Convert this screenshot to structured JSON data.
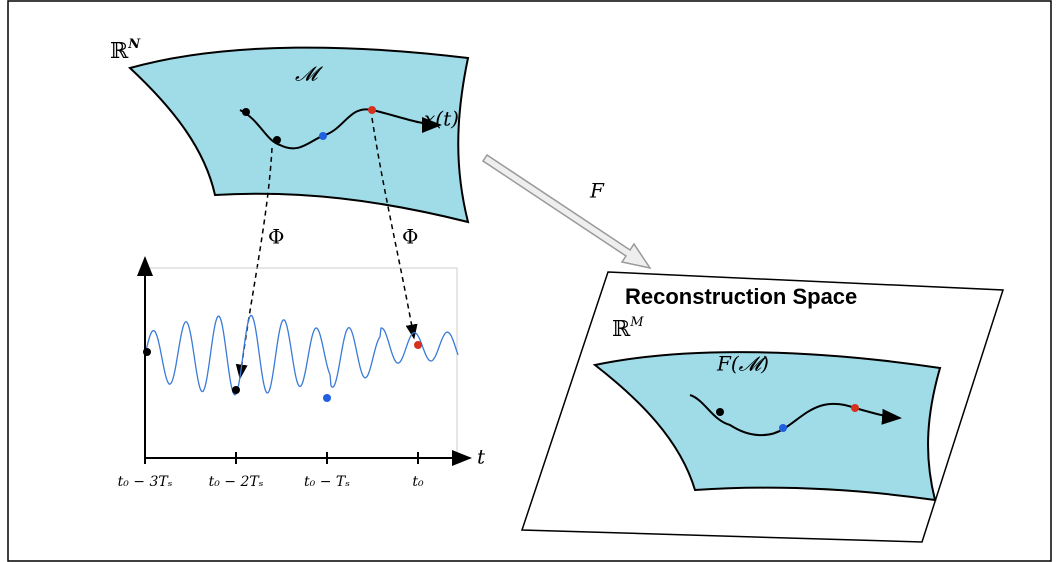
{
  "source_space": {
    "base": "ℝ",
    "sup": "N"
  },
  "manifold": "𝓜",
  "trajectory": "x(t)",
  "map_left": "Φ",
  "map_right": "Φ",
  "embedding": "F",
  "plot": {
    "axis_label": "t",
    "ticks": [
      "t₀ − 3Tₛ",
      "t₀ − 2Tₛ",
      "t₀ − Tₛ",
      "t₀"
    ]
  },
  "reconstruction": {
    "title": "Reconstruction Space",
    "space": {
      "base": "ℝ",
      "sup": "M"
    },
    "manifold": "F(𝓜)"
  }
}
